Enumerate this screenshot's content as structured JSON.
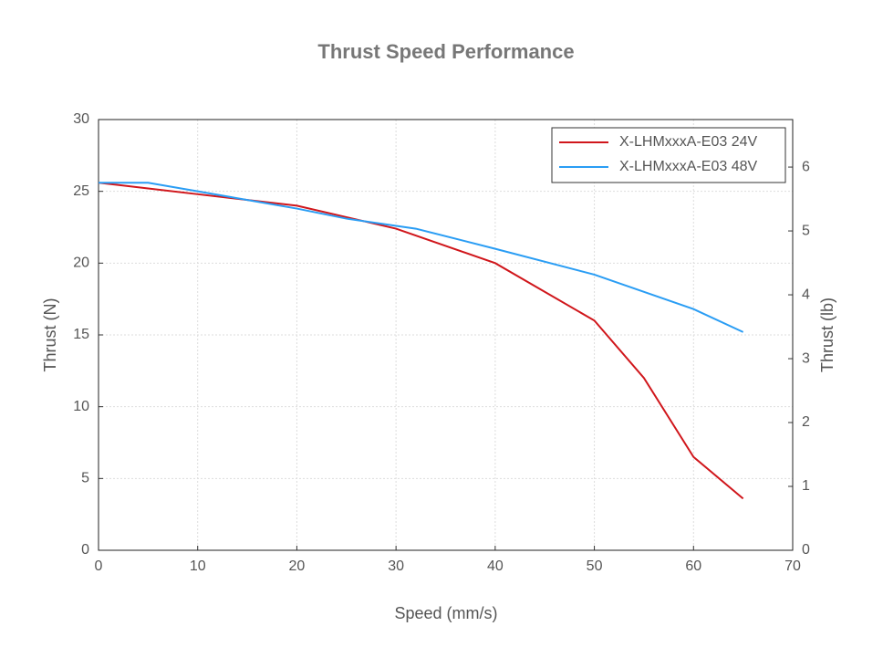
{
  "chart_data": {
    "type": "line",
    "title": "Thrust Speed Performance",
    "x_label": "Speed (mm/s)",
    "y_label": "Thrust (N)",
    "y2_label": "Thrust (lb)",
    "xlim": [
      0,
      70
    ],
    "xticks": [
      0,
      10,
      20,
      30,
      40,
      50,
      60,
      70
    ],
    "ylim": [
      0,
      30
    ],
    "yticks": [
      0,
      5,
      10,
      15,
      20,
      25,
      30
    ],
    "y2lim": [
      0,
      6.744
    ],
    "y2ticks": [
      0,
      1,
      2,
      3,
      4,
      5,
      6
    ],
    "grid": true,
    "legend": "upper right",
    "series": [
      {
        "name": "X-LHMxxxA-E03 24V",
        "color": "#d0161b",
        "x": [
          0,
          5,
          10,
          20,
          30,
          40,
          50,
          55,
          60,
          65
        ],
        "values": [
          25.6,
          25.2,
          24.8,
          24.0,
          22.4,
          20.0,
          16.0,
          12.0,
          6.5,
          3.6
        ]
      },
      {
        "name": "X-LHMxxxA-E03 48V",
        "color": "#2a9df4",
        "x": [
          0,
          5,
          10,
          15,
          20,
          25,
          32,
          40,
          50,
          60,
          65
        ],
        "values": [
          25.6,
          25.6,
          25.0,
          24.4,
          23.8,
          23.1,
          22.4,
          21.0,
          19.2,
          16.8,
          15.2
        ]
      }
    ]
  }
}
